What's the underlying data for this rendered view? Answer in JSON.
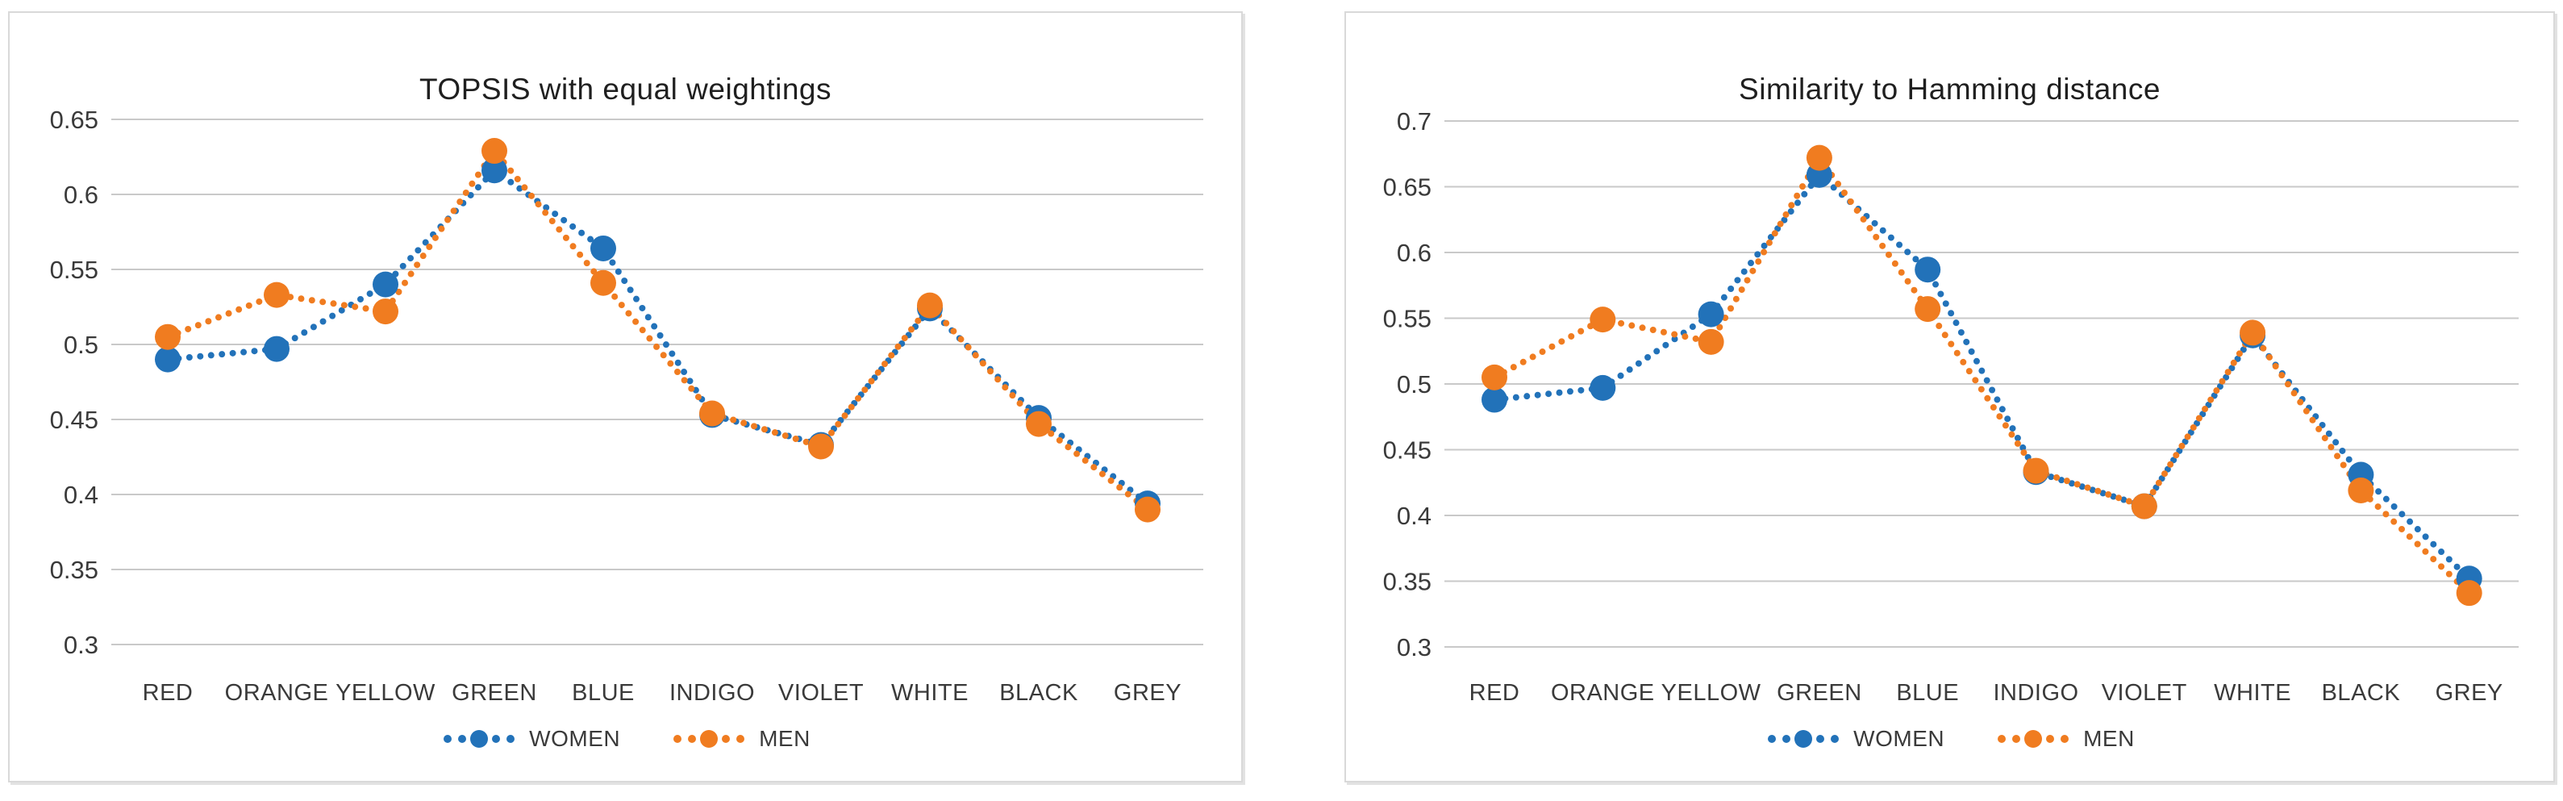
{
  "page": {
    "background_color": "#ffffff",
    "panel_border_color": "#d9d9d9",
    "gridline_color": "#c9c9c9",
    "axis_text_color": "#3a3a3a",
    "title_color": "#1f1f1f"
  },
  "chart_data": [
    {
      "type": "line",
      "title": "TOPSIS with equal weightings",
      "line_style": "dotted",
      "marker": "circle",
      "grid": "horizontal",
      "legend_position": "bottom",
      "categories": [
        "RED",
        "ORANGE",
        "YELLOW",
        "GREEN",
        "BLUE",
        "INDIGO",
        "VIOLET",
        "WHITE",
        "BLACK",
        "GREY"
      ],
      "ylim": [
        0.3,
        0.65
      ],
      "ytick_step": 0.05,
      "ytick_labels": [
        "0.65",
        "0.6",
        "0.55",
        "0.5",
        "0.45",
        "0.4",
        "0.35",
        "0.3"
      ],
      "series": [
        {
          "name": "WOMEN",
          "color": "#2272B9",
          "values": [
            0.49,
            0.497,
            0.54,
            0.616,
            0.564,
            0.453,
            0.433,
            0.524,
            0.451,
            0.394
          ]
        },
        {
          "name": "MEN",
          "color": "#F07C20",
          "values": [
            0.505,
            0.533,
            0.522,
            0.629,
            0.541,
            0.454,
            0.432,
            0.526,
            0.447,
            0.39
          ]
        }
      ]
    },
    {
      "type": "line",
      "title": "Similarity to Hamming distance",
      "line_style": "dotted",
      "marker": "circle",
      "grid": "horizontal",
      "legend_position": "bottom",
      "categories": [
        "RED",
        "ORANGE",
        "YELLOW",
        "GREEN",
        "BLUE",
        "INDIGO",
        "VIOLET",
        "WHITE",
        "BLACK",
        "GREY"
      ],
      "ylim": [
        0.3,
        0.7
      ],
      "ytick_step": 0.05,
      "ytick_labels": [
        "0.7",
        "0.65",
        "0.6",
        "0.55",
        "0.5",
        "0.45",
        "0.4",
        "0.35",
        "0.3"
      ],
      "series": [
        {
          "name": "WOMEN",
          "color": "#2272B9",
          "values": [
            0.488,
            0.497,
            0.553,
            0.659,
            0.587,
            0.433,
            0.407,
            0.537,
            0.431,
            0.352
          ]
        },
        {
          "name": "MEN",
          "color": "#F07C20",
          "values": [
            0.505,
            0.549,
            0.532,
            0.672,
            0.557,
            0.434,
            0.407,
            0.539,
            0.419,
            0.341
          ]
        }
      ]
    }
  ]
}
